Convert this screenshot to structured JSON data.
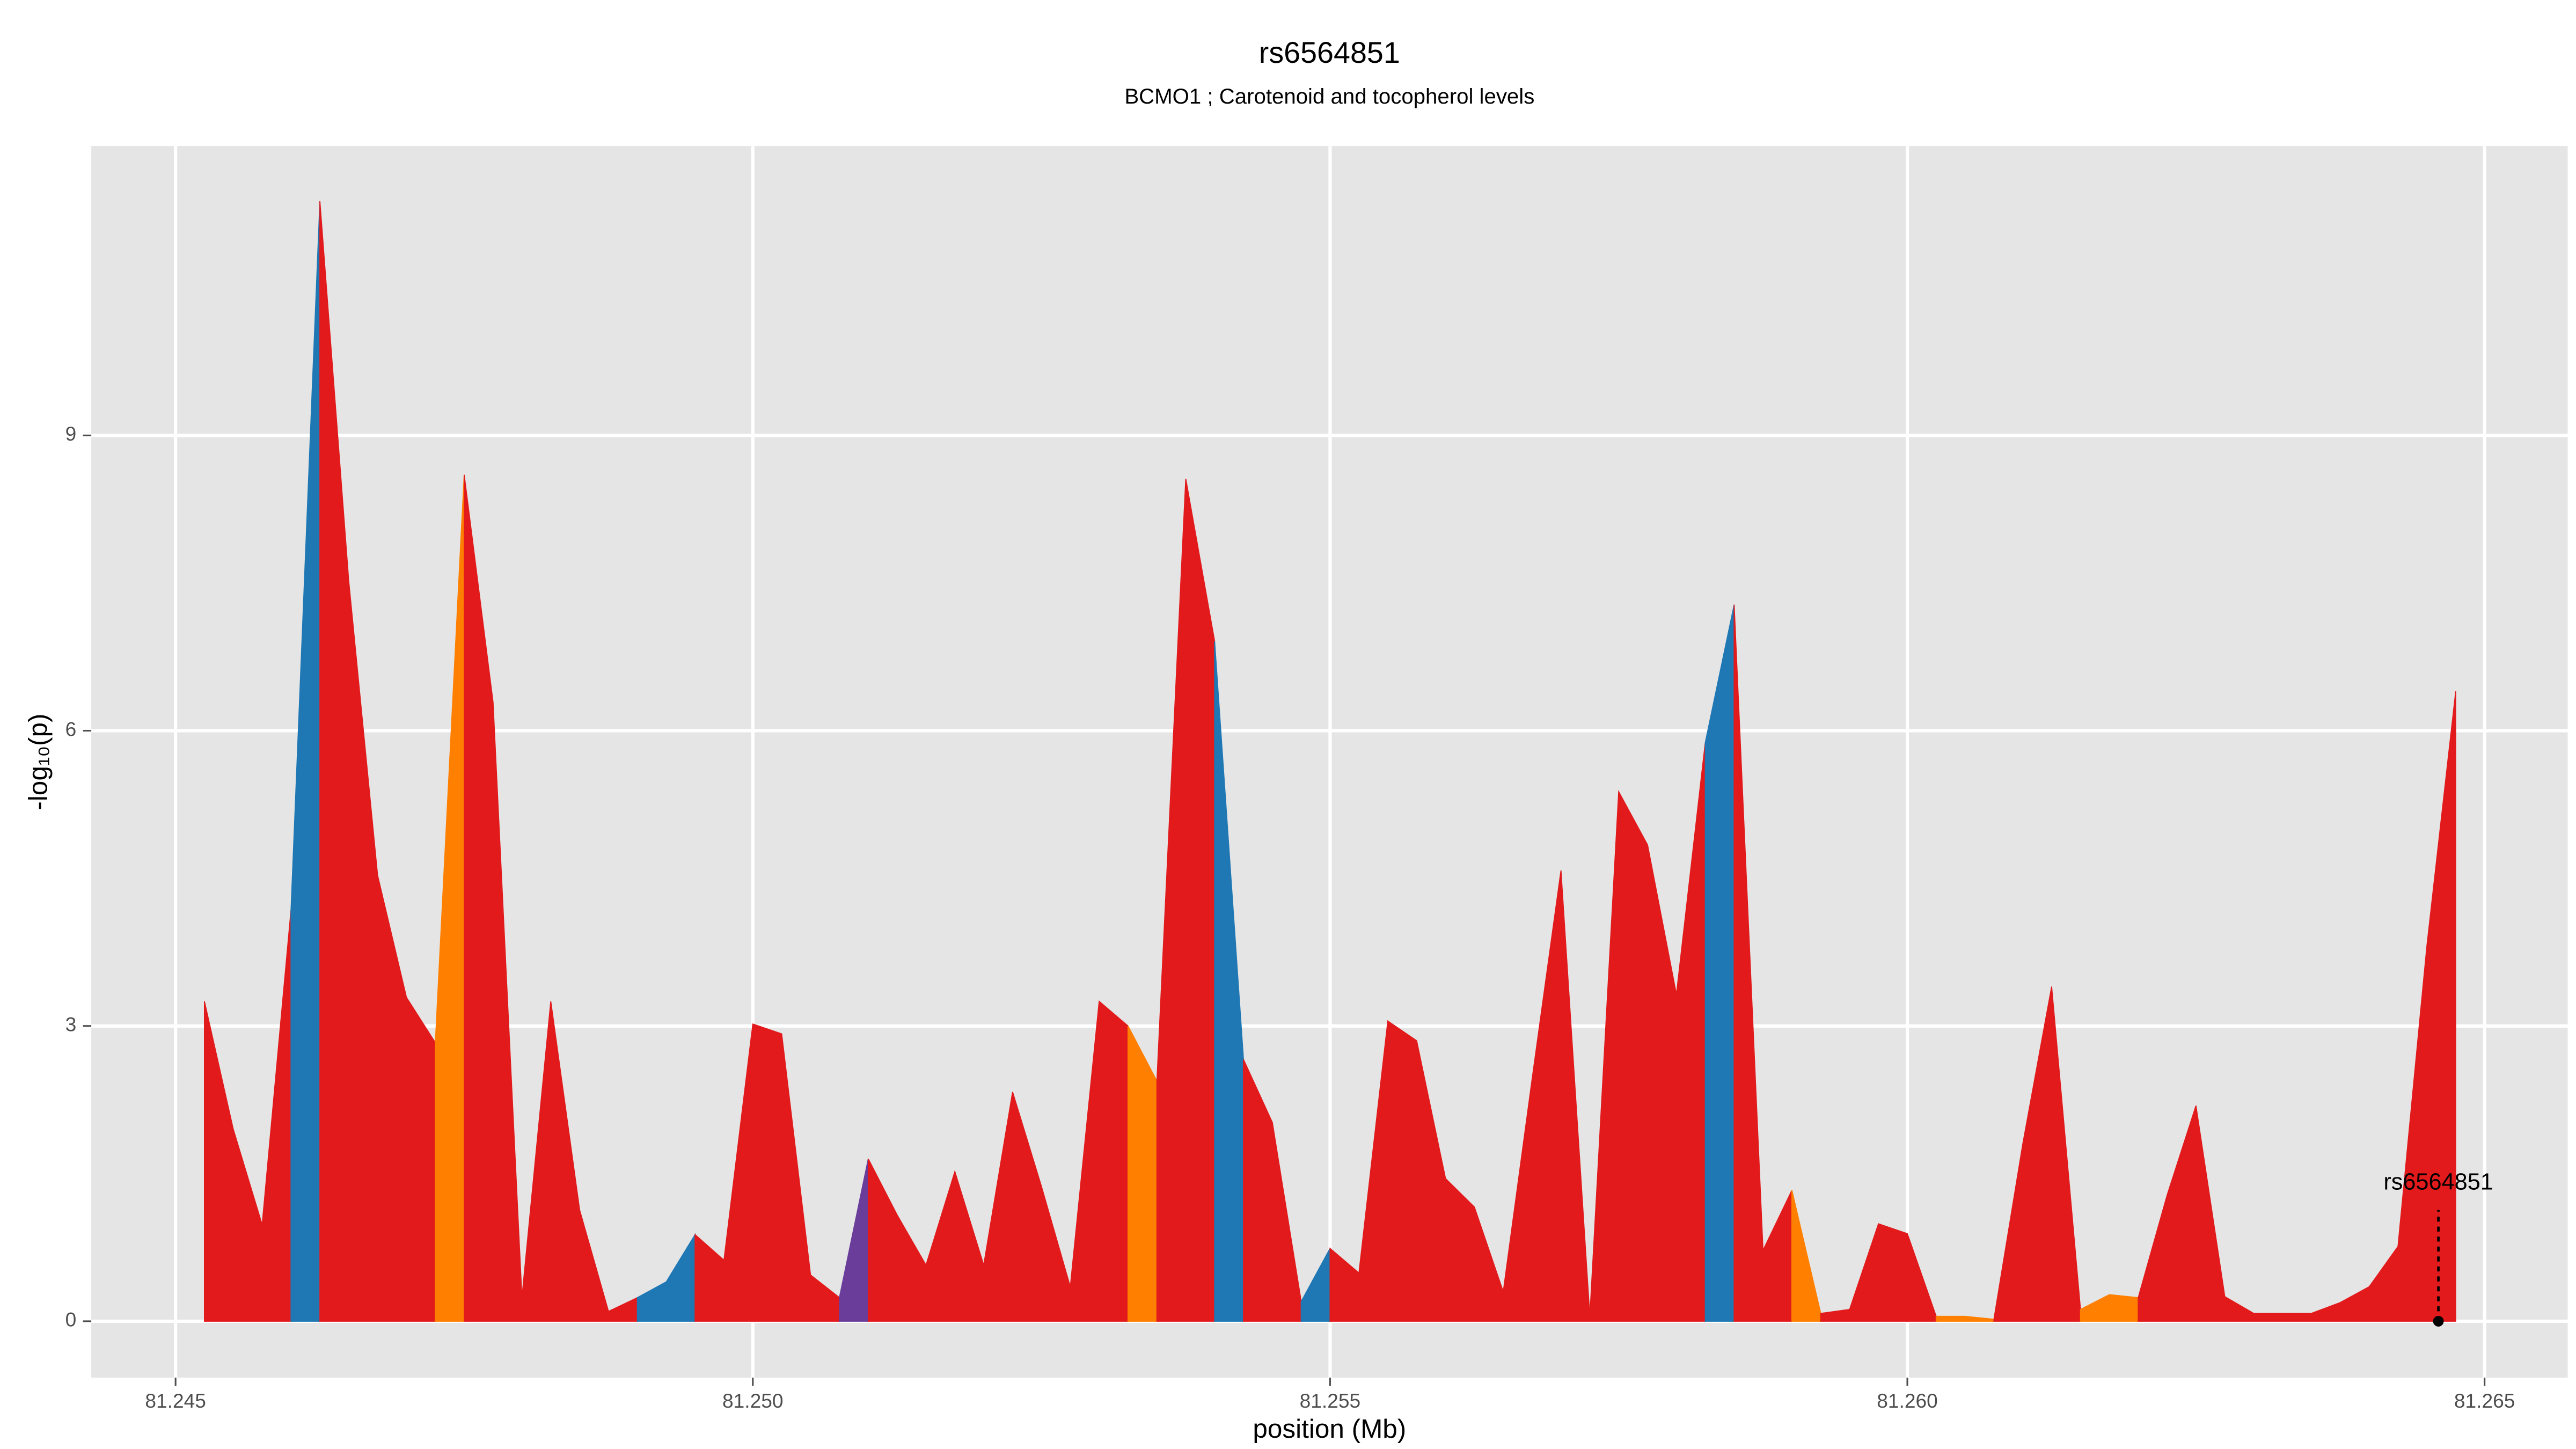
{
  "chart_data": {
    "type": "area",
    "title": "rs6564851",
    "subtitle": "BCMO1 ; Carotenoid and tocopherol levels",
    "x_label": "position (Mb)",
    "y_label": "-log₁₀(p)",
    "xlim": [
      81.24427,
      81.26572
    ],
    "ylim": [
      -0.573,
      11.94
    ],
    "xticks": [
      81.245,
      {
        "value": 81.25,
        "label": "81.250"
      },
      81.255,
      {
        "value": 81.26,
        "label": "81.260"
      },
      81.265
    ],
    "yticks": [
      0,
      3,
      6,
      9
    ],
    "grid": true,
    "series": [
      {
        "color": "#e31a1c",
        "x": [
          81.24525,
          81.2455,
          81.24575,
          81.246
        ],
        "values": [
          3.25,
          1.95,
          0.98,
          4.18
        ]
      },
      {
        "color": "#1f78b4",
        "x": [
          81.246,
          81.24625
        ],
        "values": [
          4.18,
          11.38
        ]
      },
      {
        "color": "#e31a1c",
        "x": [
          81.24625,
          81.2465,
          81.24675,
          81.247,
          81.24725
        ],
        "values": [
          11.38,
          7.52,
          4.53,
          3.29,
          2.83
        ]
      },
      {
        "color": "#ff7f00",
        "x": [
          81.24725,
          81.2475
        ],
        "values": [
          2.83,
          8.6
        ]
      },
      {
        "color": "#e31a1c",
        "x": [
          81.2475,
          81.24775,
          81.248,
          81.24825,
          81.2485,
          81.24875,
          81.249
        ],
        "values": [
          8.6,
          6.29,
          0.24,
          3.25,
          1.13,
          0.1,
          0.24
        ]
      },
      {
        "color": "#1f78b4",
        "x": [
          81.249,
          81.24925,
          81.2495
        ],
        "values": [
          0.24,
          0.4,
          0.88
        ]
      },
      {
        "color": "#e31a1c",
        "x": [
          81.2495,
          81.24975,
          81.25,
          81.25025,
          81.2505,
          81.25075
        ],
        "values": [
          0.88,
          0.62,
          3.02,
          2.92,
          0.47,
          0.24
        ]
      },
      {
        "color": "#6a3d9a",
        "x": [
          81.25075,
          81.251
        ],
        "values": [
          0.24,
          1.65
        ]
      },
      {
        "color": "#e31a1c",
        "x": [
          81.251,
          81.25125,
          81.2515,
          81.25175,
          81.252,
          81.25225,
          81.2525,
          81.25275,
          81.253,
          81.25325
        ],
        "values": [
          1.65,
          1.08,
          0.57,
          1.52,
          0.57,
          2.33,
          1.37,
          0.35,
          3.25,
          3.0
        ]
      },
      {
        "color": "#ff7f00",
        "x": [
          81.25325,
          81.2535
        ],
        "values": [
          3.0,
          2.44
        ]
      },
      {
        "color": "#e31a1c",
        "x": [
          81.2535,
          81.25375,
          81.254
        ],
        "values": [
          2.44,
          8.56,
          6.91
        ]
      },
      {
        "color": "#1f78b4",
        "x": [
          81.254,
          81.25425
        ],
        "values": [
          6.91,
          2.66
        ]
      },
      {
        "color": "#e31a1c",
        "x": [
          81.25425,
          81.2545,
          81.25475
        ],
        "values": [
          2.66,
          2.02,
          0.2
        ]
      },
      {
        "color": "#1f78b4",
        "x": [
          81.25475,
          81.255
        ],
        "values": [
          0.2,
          0.74
        ]
      },
      {
        "color": "#e31a1c",
        "x": [
          81.255,
          81.25525,
          81.2555,
          81.25575,
          81.256,
          81.25625,
          81.2565,
          81.25675,
          81.257,
          81.25725,
          81.2575,
          81.25775,
          81.258,
          81.25825
        ],
        "values": [
          0.74,
          0.49,
          3.05,
          2.85,
          1.45,
          1.16,
          0.3,
          2.46,
          4.58,
          0.05,
          5.38,
          4.84,
          3.32,
          5.88
        ]
      },
      {
        "color": "#1f78b4",
        "x": [
          81.25825,
          81.2585
        ],
        "values": [
          5.88,
          7.28
        ]
      },
      {
        "color": "#e31a1c",
        "x": [
          81.2585,
          81.25875,
          81.259
        ],
        "values": [
          7.28,
          0.72,
          1.33
        ]
      },
      {
        "color": "#ff7f00",
        "x": [
          81.259,
          81.25925
        ],
        "values": [
          1.33,
          0.08
        ]
      },
      {
        "color": "#e31a1c",
        "x": [
          81.25925,
          81.2595,
          81.25975,
          81.26,
          81.26025
        ],
        "values": [
          0.08,
          0.12,
          0.99,
          0.89,
          0.05
        ]
      },
      {
        "color": "#ff7f00",
        "x": [
          81.26025,
          81.2605,
          81.26075
        ],
        "values": [
          0.05,
          0.05,
          0.02
        ]
      },
      {
        "color": "#e31a1c",
        "x": [
          81.26075,
          81.261,
          81.26125,
          81.2615
        ],
        "values": [
          0.02,
          1.8,
          3.4,
          0.12
        ]
      },
      {
        "color": "#ff7f00",
        "x": [
          81.2615,
          81.26175,
          81.262
        ],
        "values": [
          0.12,
          0.27,
          0.24
        ]
      },
      {
        "color": "#e31a1c",
        "x": [
          81.262,
          81.26225,
          81.2625,
          81.26275,
          81.263,
          81.26325,
          81.2635,
          81.26375,
          81.264,
          81.26425,
          81.2645,
          81.26475
        ],
        "values": [
          0.24,
          1.28,
          2.19,
          0.25,
          0.08,
          0.08,
          0.08,
          0.19,
          0.35,
          0.76,
          3.81,
          6.4
        ]
      }
    ],
    "annotation": {
      "text": "rs6564851",
      "x": 81.2646,
      "y": 0
    }
  }
}
